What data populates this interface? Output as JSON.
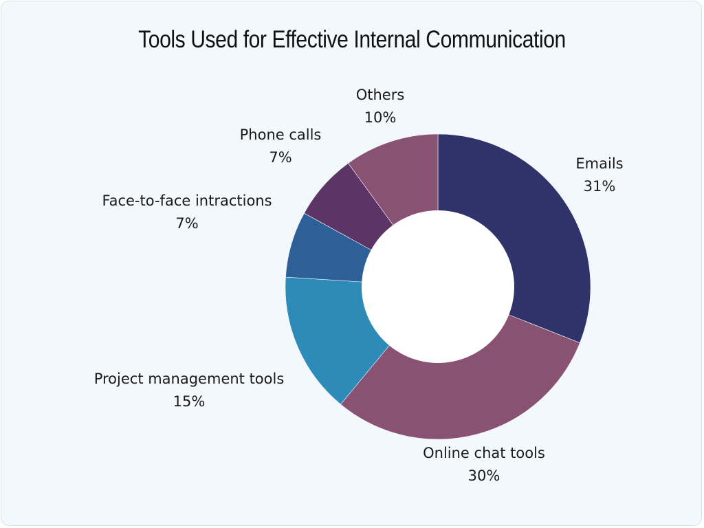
{
  "chart_data": {
    "type": "pie",
    "variant": "donut",
    "title": "Tools Used for Effective Internal Communication",
    "categories": [
      "Emails",
      "Online chat tools",
      "Project management tools",
      "Face-to-face intractions",
      "Phone calls",
      "Others"
    ],
    "values": [
      31,
      30,
      15,
      7,
      7,
      10
    ],
    "value_labels": [
      "31%",
      "30%",
      "15%",
      "7%",
      "7%",
      "10%"
    ],
    "colors": [
      "#2f336a",
      "#8a5272",
      "#2e8bb8",
      "#2e6098",
      "#5c3566",
      "#8a5272"
    ],
    "start_angle_deg": 0,
    "direction": "clockwise",
    "legend": "none (direct labels)"
  },
  "background": "#f3f8fd",
  "labels": [
    {
      "name": "Emails",
      "pct": "31%"
    },
    {
      "name": "Online chat tools",
      "pct": "30%"
    },
    {
      "name": "Project management tools",
      "pct": "15%"
    },
    {
      "name": "Face-to-face intractions",
      "pct": "7%"
    },
    {
      "name": "Phone calls",
      "pct": "7%"
    },
    {
      "name": "Others",
      "pct": "10%"
    }
  ]
}
